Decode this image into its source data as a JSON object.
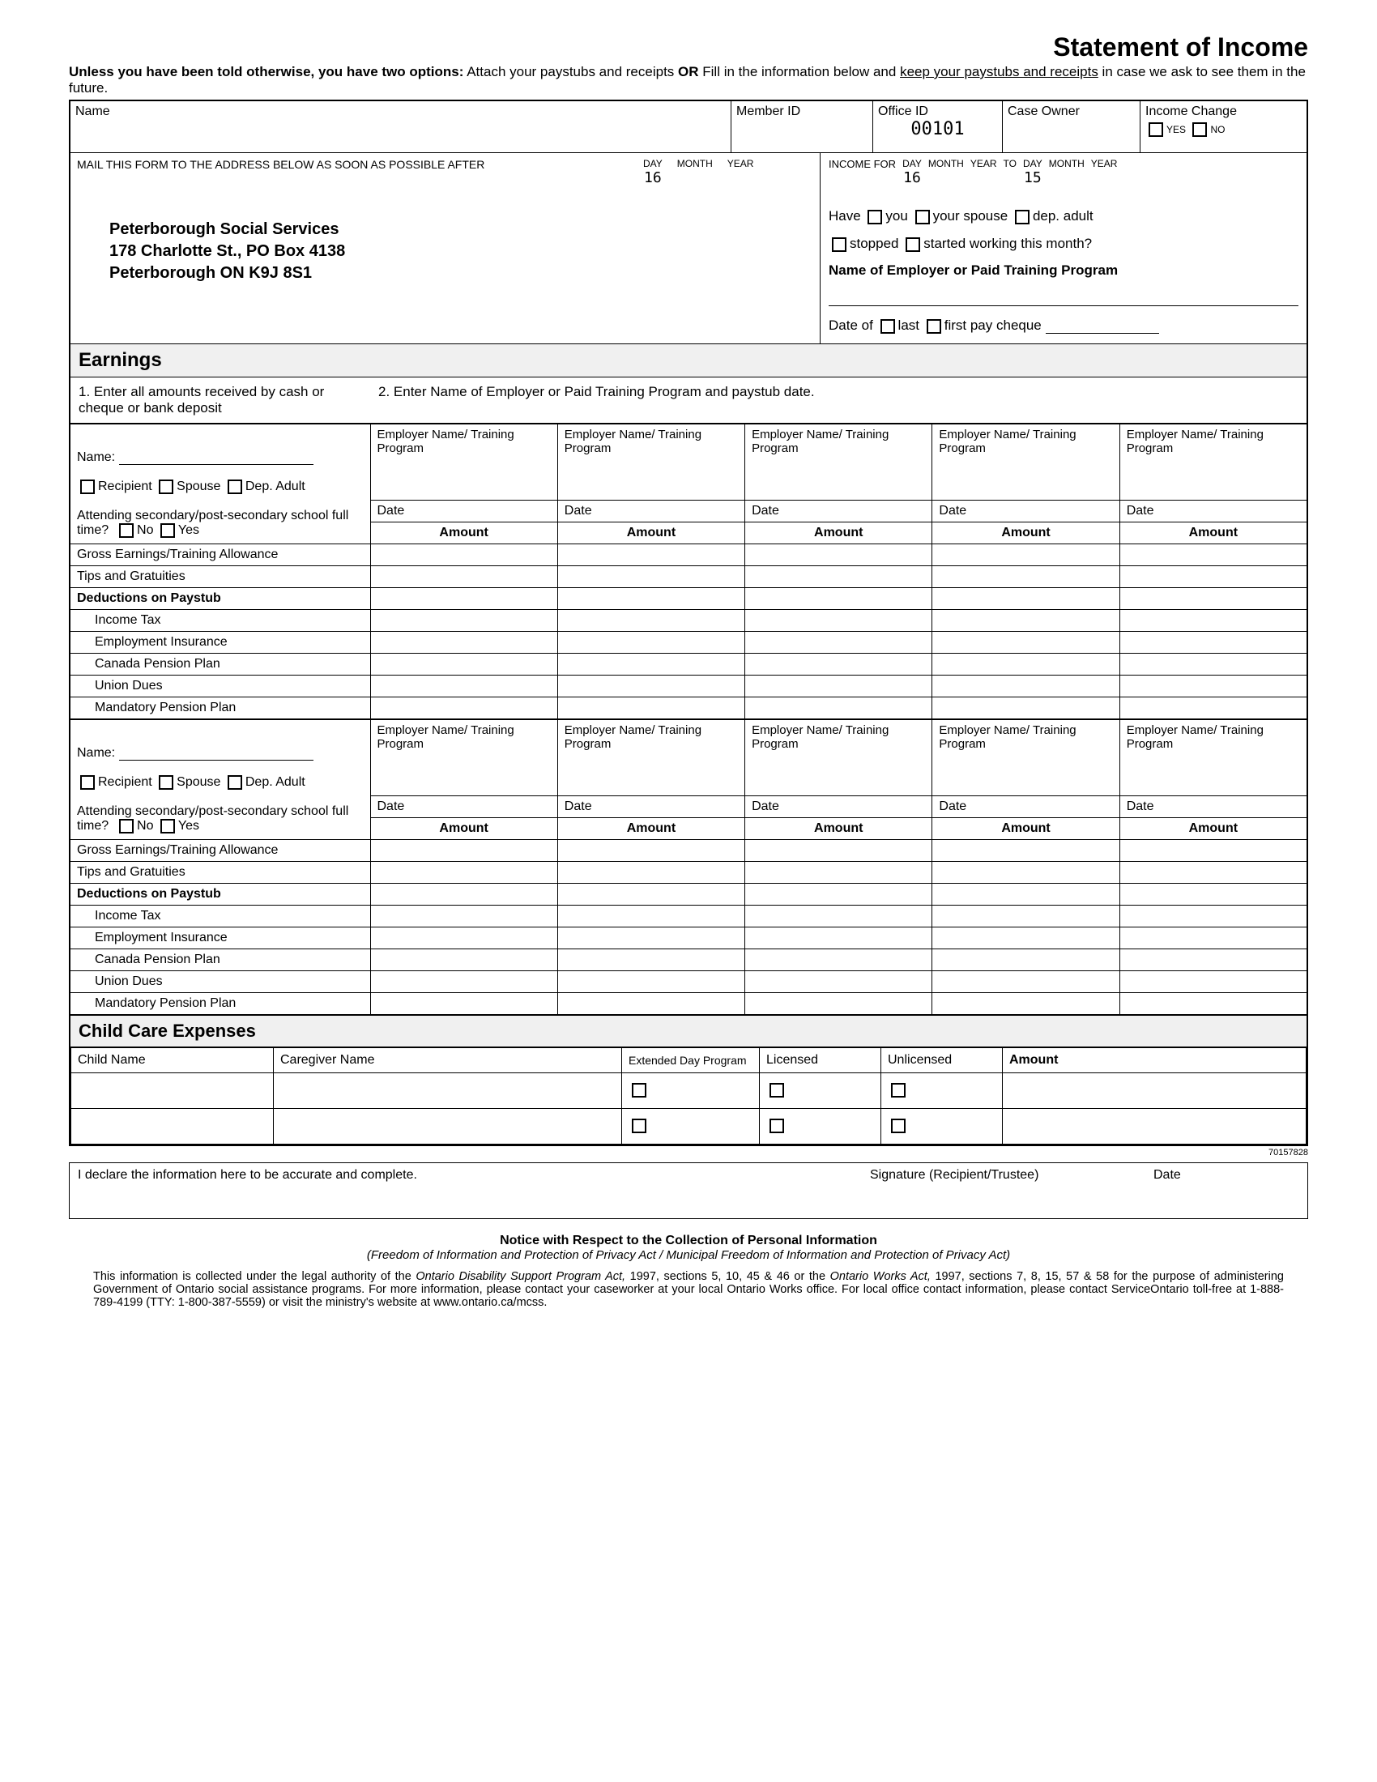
{
  "title": "Statement of Income",
  "intro_bold": "Unless you have been told otherwise, you have two options:",
  "intro_rest1": " Attach your paystubs and receipts ",
  "intro_or": "OR",
  "intro_rest2": " Fill in the information below and ",
  "intro_underline": "keep your paystubs and receipts",
  "intro_rest3": " in case we ask to see them in the future.",
  "labels": {
    "name": "Name",
    "member_id": "Member ID",
    "office_id": "Office ID",
    "case_owner": "Case Owner",
    "income_change": "Income Change",
    "yes": "YES",
    "no": "NO"
  },
  "office_id_value": "00101",
  "mail_instruction": "MAIL THIS FORM TO THE ADDRESS BELOW AS SOON AS POSSIBLE AFTER",
  "date_parts": {
    "day": "DAY",
    "month": "MONTH",
    "year": "YEAR",
    "to": "TO"
  },
  "mail_day": "16",
  "income_for": "INCOME FOR",
  "income_from_day": "16",
  "income_to_day": "15",
  "address": {
    "line1": "Peterborough Social Services",
    "line2": "178 Charlotte St., PO Box 4138",
    "line3": "Peterborough  ON   K9J 8S1"
  },
  "right_box": {
    "have": "Have",
    "you": "you",
    "your_spouse": "your spouse",
    "dep_adult": "dep. adult",
    "stopped": "stopped",
    "started": "started working this month?",
    "employer_name_label": "Name of Employer or Paid Training Program",
    "date_of": "Date of",
    "last": "last",
    "first": "first pay cheque"
  },
  "earnings": {
    "heading": "Earnings",
    "instr1": "1. Enter all amounts received by cash or cheque or bank deposit",
    "instr2": "2. Enter Name of Employer or Paid Training Program and paystub date.",
    "name_label": "Name:",
    "recipient": "Recipient",
    "spouse": "Spouse",
    "dep_adult": "Dep. Adult",
    "attending": "Attending secondary/post-secondary school full time?",
    "no": "No",
    "yes": "Yes",
    "emp_header": "Employer Name/ Training Program",
    "date": "Date",
    "amount": "Amount",
    "rows": [
      "Gross Earnings/Training Allowance",
      "Tips and Gratuities"
    ],
    "deductions_heading": "Deductions on Paystub",
    "deductions": [
      "Income Tax",
      "Employment Insurance",
      "Canada Pension Plan",
      "Union Dues",
      "Mandatory Pension Plan"
    ]
  },
  "childcare": {
    "heading": "Child Care Expenses",
    "child_name": "Child Name",
    "caregiver": "Caregiver Name",
    "extended": "Extended Day Program",
    "licensed": "Licensed",
    "unlicensed": "Unlicensed",
    "amount": "Amount"
  },
  "form_number": "70157828",
  "declaration": {
    "text": "I declare the information here to be accurate and complete.",
    "sig": "Signature (Recipient/Trustee)",
    "date": "Date"
  },
  "notice": {
    "title": "Notice with Respect to the Collection of Personal Information",
    "subtitle": "(Freedom of Information and Protection of Privacy Act / Municipal Freedom of Information and Protection of Privacy Act)",
    "body1": "This information is collected under the legal authority of the ",
    "act1": "Ontario Disability Support Program Act,",
    "body2": " 1997, sections 5, 10, 45 & 46 or the ",
    "act2": "Ontario Works Act,",
    "body3": " 1997, sections 7, 8, 15, 57 & 58 for the purpose of administering Government of Ontario social assistance programs. For more information, please contact your caseworker at your local Ontario Works office. For local office contact information, please contact ServiceOntario toll-free at 1-888-789-4199 (TTY: 1-800-387-5559) or visit the ministry's website at www.ontario.ca/mcss."
  }
}
